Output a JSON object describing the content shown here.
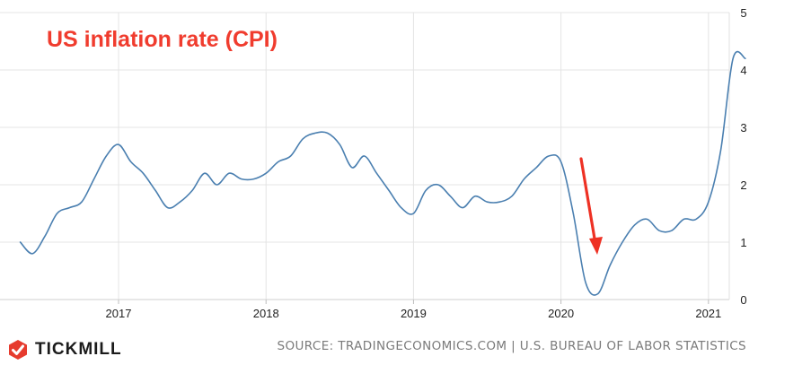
{
  "title": "US inflation rate (CPI)",
  "brand": {
    "name": "TICKMILL",
    "logo_icon": "tickmill-logo-icon"
  },
  "source": "SOURCE: TRADINGECONOMICS.COM | U.S. BUREAU OF LABOR STATISTICS",
  "colors": {
    "line": "#4a7fb0",
    "title": "#f03c2e",
    "arrow": "#ee3124",
    "grid": "#e4e4e4",
    "logo": "#e63b2e"
  },
  "chart_data": {
    "type": "line",
    "title": "US inflation rate (CPI)",
    "xlabel": "",
    "ylabel": "",
    "xlim": [
      2016.33,
      2021.33
    ],
    "ylim": [
      0,
      5
    ],
    "yticks": [
      "0",
      "1",
      "2",
      "3",
      "4",
      "5"
    ],
    "xticks": [
      "2017",
      "2018",
      "2019",
      "2020",
      "2021"
    ],
    "grid": true,
    "y_axis_side": "right",
    "annotation": "red downward arrow pointing at the 2020 low",
    "series": [
      {
        "x": [
          "2016-05",
          "2016-06",
          "2016-07",
          "2016-08",
          "2016-09",
          "2016-10",
          "2016-11",
          "2016-12",
          "2017-01",
          "2017-02",
          "2017-03",
          "2017-04",
          "2017-05",
          "2017-06",
          "2017-07",
          "2017-08",
          "2017-09",
          "2017-10",
          "2017-11",
          "2017-12",
          "2018-01",
          "2018-02",
          "2018-03",
          "2018-04",
          "2018-05",
          "2018-06",
          "2018-07",
          "2018-08",
          "2018-09",
          "2018-10",
          "2018-11",
          "2018-12",
          "2019-01",
          "2019-02",
          "2019-03",
          "2019-04",
          "2019-05",
          "2019-06",
          "2019-07",
          "2019-08",
          "2019-09",
          "2019-10",
          "2019-11",
          "2019-12",
          "2020-01",
          "2020-02",
          "2020-03",
          "2020-04",
          "2020-05",
          "2020-06",
          "2020-07",
          "2020-08",
          "2020-09",
          "2020-10",
          "2020-11",
          "2020-12",
          "2021-01",
          "2021-02",
          "2021-03",
          "2021-04"
        ],
        "values": [
          1.0,
          0.8,
          1.1,
          1.5,
          1.6,
          1.7,
          2.1,
          2.5,
          2.7,
          2.4,
          2.2,
          1.9,
          1.6,
          1.7,
          1.9,
          2.2,
          2.0,
          2.2,
          2.1,
          2.1,
          2.2,
          2.4,
          2.5,
          2.8,
          2.9,
          2.9,
          2.7,
          2.3,
          2.5,
          2.2,
          1.9,
          1.6,
          1.5,
          1.9,
          2.0,
          1.8,
          1.6,
          1.8,
          1.7,
          1.7,
          1.8,
          2.1,
          2.3,
          2.5,
          2.4,
          1.5,
          0.3,
          0.1,
          0.6,
          1.0,
          1.3,
          1.4,
          1.2,
          1.2,
          1.4,
          1.4,
          1.7,
          2.6,
          4.2,
          4.2
        ]
      }
    ]
  }
}
